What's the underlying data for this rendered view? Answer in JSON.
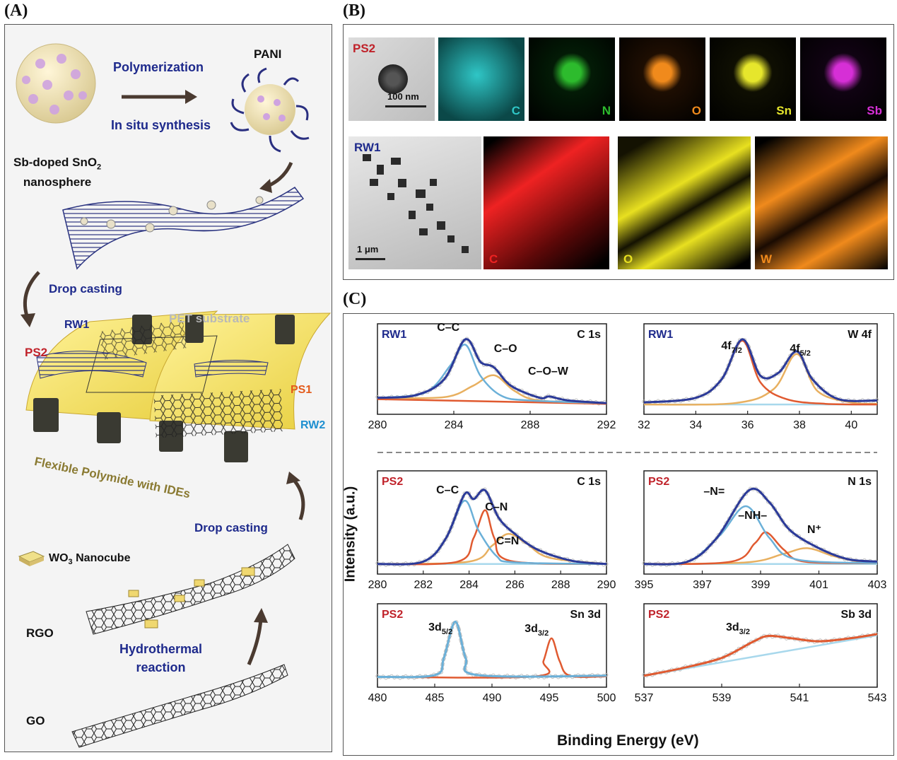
{
  "panel_labels": {
    "a": "(A)",
    "b": "(B)",
    "c": "(C)"
  },
  "panel_a": {
    "polymerization": "Polymerization",
    "in_situ": "In situ synthesis",
    "pani": "PANI",
    "sb_doped_line1": "Sb-doped SnO",
    "sb_doped_sub": "2",
    "sb_doped_line2": "nanosphere",
    "drop_casting_1": "Drop casting",
    "pet_substrate": "PET substrate",
    "rw1": "RW1",
    "ps2": "PS2",
    "ps1": "PS1",
    "rw2": "RW2",
    "flexible": "Flexible Polymide with IDEs",
    "drop_casting_2": "Drop casting",
    "wo3_prefix": "WO",
    "wo3_sub": "3",
    "wo3_suffix": " Nanocube",
    "rgo": "RGO",
    "hydrothermal_1": "Hydrothermal",
    "hydrothermal_2": "reaction",
    "go": "GO"
  },
  "panel_b": {
    "row1_sample": "PS2",
    "row1_scale": "100 nm",
    "row1_elements": [
      {
        "label": "C",
        "color": "#2fc6c6",
        "bg": "#0b4848"
      },
      {
        "label": "N",
        "color": "#2dbb2d",
        "bg": "#031b06"
      },
      {
        "label": "O",
        "color": "#f08a1c",
        "bg": "#1e0e02"
      },
      {
        "label": "Sn",
        "color": "#e6e62c",
        "bg": "#0f0f02"
      },
      {
        "label": "Sb",
        "color": "#d62fd6",
        "bg": "#100312"
      }
    ],
    "row2_sample": "RW1",
    "row2_scale": "1 μm",
    "row2_elements": [
      {
        "label": "C",
        "color": "#ee2222",
        "bg": "#5c0808"
      },
      {
        "label": "O",
        "color": "#e8e020",
        "bg": "#141202"
      },
      {
        "label": "W",
        "color": "#f08a1c",
        "bg": "#1a0b02"
      }
    ]
  },
  "panel_c": {
    "ylabel": "Intensity (a.u.)",
    "xlabel": "Binding Energy (eV)"
  },
  "chart_data": [
    {
      "type": "line",
      "sample": "RW1",
      "title": "C 1s",
      "xlim": [
        280,
        292
      ],
      "xticks": [
        280,
        284,
        288,
        292
      ],
      "peaks": [
        {
          "label": "C–C",
          "x": 284.6
        },
        {
          "label": "C–O",
          "x": 286.1
        },
        {
          "label": "C–O–W",
          "x": 289.0
        }
      ],
      "series": [
        {
          "color": "#2b3a99",
          "points": [
            [
              280,
              0.12
            ],
            [
              282,
              0.16
            ],
            [
              283.5,
              0.4
            ],
            [
              284.6,
              1.0
            ],
            [
              285.4,
              0.66
            ],
            [
              286.1,
              0.58
            ],
            [
              287,
              0.3
            ],
            [
              288.5,
              0.12
            ],
            [
              289,
              0.14
            ],
            [
              290,
              0.08
            ],
            [
              292,
              0.04
            ]
          ]
        },
        {
          "color": "#6bb0d8",
          "points": [
            [
              280,
              0.12
            ],
            [
              282.5,
              0.2
            ],
            [
              283.8,
              0.6
            ],
            [
              284.6,
              0.92
            ],
            [
              285.4,
              0.45
            ],
            [
              286.5,
              0.15
            ],
            [
              288,
              0.08
            ],
            [
              292,
              0.04
            ]
          ]
        },
        {
          "color": "#e8b060",
          "points": [
            [
              280,
              0.12
            ],
            [
              283.5,
              0.13
            ],
            [
              285,
              0.3
            ],
            [
              286.1,
              0.46
            ],
            [
              287.2,
              0.22
            ],
            [
              288.5,
              0.08
            ],
            [
              292,
              0.04
            ]
          ]
        },
        {
          "color": "#e05a30",
          "points": [
            [
              280,
              0.1
            ],
            [
              292,
              0.03
            ]
          ]
        }
      ]
    },
    {
      "type": "line",
      "sample": "RW1",
      "title": "W 4f",
      "xlim": [
        32,
        41
      ],
      "xticks": [
        32,
        34,
        36,
        38,
        40
      ],
      "peaks": [
        {
          "label": "4f",
          "sub": "7/2",
          "x": 35.8
        },
        {
          "label": "4f",
          "sub": "5/2",
          "x": 37.9
        }
      ],
      "series": [
        {
          "color": "#2b3a99",
          "points": [
            [
              32,
              0.05
            ],
            [
              34,
              0.12
            ],
            [
              35,
              0.4
            ],
            [
              35.8,
              1.0
            ],
            [
              36.5,
              0.45
            ],
            [
              37.2,
              0.5
            ],
            [
              37.9,
              0.82
            ],
            [
              38.5,
              0.4
            ],
            [
              39.5,
              0.1
            ],
            [
              41,
              0.08
            ]
          ]
        },
        {
          "color": "#e05a30",
          "points": [
            [
              32,
              0.05
            ],
            [
              34,
              0.12
            ],
            [
              35,
              0.4
            ],
            [
              35.8,
              0.98
            ],
            [
              36.5,
              0.35
            ],
            [
              37.5,
              0.1
            ],
            [
              39,
              0.03
            ],
            [
              41,
              0.02
            ]
          ]
        },
        {
          "color": "#e8b060",
          "points": [
            [
              32,
              0.02
            ],
            [
              35.5,
              0.04
            ],
            [
              37,
              0.25
            ],
            [
              37.9,
              0.78
            ],
            [
              38.7,
              0.22
            ],
            [
              40,
              0.05
            ],
            [
              41,
              0.03
            ]
          ]
        },
        {
          "color": "#a8d8ec",
          "points": [
            [
              32,
              0.02
            ],
            [
              41,
              0.02
            ]
          ]
        }
      ]
    },
    {
      "type": "line",
      "sample": "PS2",
      "title": "C 1s",
      "xlim": [
        280,
        290
      ],
      "xticks": [
        280,
        282,
        284,
        286,
        288,
        290
      ],
      "peaks": [
        {
          "label": "C–C",
          "x": 283.8
        },
        {
          "label": "C–N",
          "x": 284.7
        },
        {
          "label": "C=N",
          "x": 285.8
        }
      ],
      "series": [
        {
          "color": "#2b3a99",
          "points": [
            [
              280,
              0.02
            ],
            [
              282,
              0.05
            ],
            [
              283,
              0.35
            ],
            [
              283.8,
              0.9
            ],
            [
              284.2,
              0.84
            ],
            [
              284.7,
              0.95
            ],
            [
              285.3,
              0.6
            ],
            [
              286,
              0.4
            ],
            [
              287,
              0.2
            ],
            [
              288.5,
              0.06
            ],
            [
              290,
              0.02
            ]
          ]
        },
        {
          "color": "#6bb0d8",
          "points": [
            [
              280,
              0.02
            ],
            [
              282,
              0.05
            ],
            [
              283,
              0.35
            ],
            [
              283.8,
              0.82
            ],
            [
              284.4,
              0.45
            ],
            [
              285.2,
              0.12
            ],
            [
              286,
              0.04
            ],
            [
              290,
              0.02
            ]
          ]
        },
        {
          "color": "#e05a30",
          "points": [
            [
              280,
              0.02
            ],
            [
              283.5,
              0.05
            ],
            [
              284.2,
              0.35
            ],
            [
              284.7,
              0.7
            ],
            [
              285.1,
              0.35
            ],
            [
              285.8,
              0.06
            ],
            [
              290,
              0.02
            ]
          ]
        },
        {
          "color": "#e8b060",
          "points": [
            [
              280,
              0.02
            ],
            [
              284,
              0.05
            ],
            [
              285,
              0.25
            ],
            [
              285.7,
              0.4
            ],
            [
              286.5,
              0.28
            ],
            [
              287.5,
              0.1
            ],
            [
              290,
              0.02
            ]
          ]
        },
        {
          "color": "#a8d8ec",
          "points": [
            [
              280,
              0.02
            ],
            [
              290,
              0.02
            ]
          ]
        }
      ]
    },
    {
      "type": "line",
      "sample": "PS2",
      "title": "N 1s",
      "xlim": [
        395,
        403
      ],
      "xticks": [
        395,
        397,
        399,
        401,
        403
      ],
      "peaks": [
        {
          "label": "–N=",
          "x": 398.5
        },
        {
          "label": "–NH–",
          "x": 399.2
        },
        {
          "label": "N⁺",
          "x": 400.6
        }
      ],
      "series": [
        {
          "color": "#2b3a99",
          "points": [
            [
              395,
              0.02
            ],
            [
              396.5,
              0.05
            ],
            [
              397.5,
              0.35
            ],
            [
              398.6,
              0.95
            ],
            [
              399.3,
              0.8
            ],
            [
              400,
              0.45
            ],
            [
              401,
              0.22
            ],
            [
              402,
              0.08
            ],
            [
              403,
              0.05
            ]
          ]
        },
        {
          "color": "#6bb0d8",
          "points": [
            [
              395,
              0.02
            ],
            [
              396.5,
              0.05
            ],
            [
              397.6,
              0.38
            ],
            [
              398.5,
              0.75
            ],
            [
              399.3,
              0.35
            ],
            [
              400.2,
              0.08
            ],
            [
              403,
              0.03
            ]
          ]
        },
        {
          "color": "#e05a30",
          "points": [
            [
              395,
              0.02
            ],
            [
              398,
              0.05
            ],
            [
              398.8,
              0.28
            ],
            [
              399.2,
              0.42
            ],
            [
              399.8,
              0.2
            ],
            [
              400.5,
              0.05
            ],
            [
              403,
              0.03
            ]
          ]
        },
        {
          "color": "#e8b060",
          "points": [
            [
              395,
              0.02
            ],
            [
              398.5,
              0.04
            ],
            [
              399.8,
              0.15
            ],
            [
              400.6,
              0.22
            ],
            [
              401.5,
              0.12
            ],
            [
              402.5,
              0.04
            ],
            [
              403,
              0.03
            ]
          ]
        },
        {
          "color": "#a8d8ec",
          "points": [
            [
              395,
              0.02
            ],
            [
              403,
              0.02
            ]
          ]
        }
      ]
    },
    {
      "type": "line",
      "sample": "PS2",
      "title": "Sn 3d",
      "xlim": [
        480,
        500
      ],
      "xticks": [
        480,
        485,
        490,
        495,
        500
      ],
      "peaks": [
        {
          "label": "3d",
          "sub": "5/2",
          "x": 486.8
        },
        {
          "label": "3d",
          "sub": "3/2",
          "x": 495.2
        }
      ],
      "series": [
        {
          "color": "#6bb0d8",
          "points": [
            [
              480,
              0.03
            ],
            [
              485,
              0.06
            ],
            [
              485.8,
              0.35
            ],
            [
              486.8,
              0.96
            ],
            [
              487.7,
              0.35
            ],
            [
              488.8,
              0.06
            ],
            [
              500,
              0.05
            ]
          ]
        },
        {
          "color": "#e05a30",
          "points": [
            [
              480,
              0.03
            ],
            [
              493.8,
              0.04
            ],
            [
              494.5,
              0.3
            ],
            [
              495.2,
              0.68
            ],
            [
              495.9,
              0.3
            ],
            [
              496.8,
              0.05
            ],
            [
              500,
              0.04
            ]
          ]
        }
      ]
    },
    {
      "type": "line",
      "sample": "PS2",
      "title": "Sb 3d",
      "xlim": [
        537,
        543
      ],
      "xticks": [
        537,
        539,
        541,
        543
      ],
      "peaks": [
        {
          "label": "3d",
          "sub": "3/2",
          "x": 540.2
        }
      ],
      "series": [
        {
          "color": "#e05a30",
          "points": [
            [
              537,
              0.05
            ],
            [
              538,
              0.18
            ],
            [
              539,
              0.35
            ],
            [
              539.8,
              0.62
            ],
            [
              540.2,
              0.72
            ],
            [
              540.8,
              0.68
            ],
            [
              541.5,
              0.63
            ],
            [
              542.3,
              0.68
            ],
            [
              543,
              0.75
            ]
          ]
        },
        {
          "color": "#a8d8ec",
          "points": [
            [
              537,
              0.05
            ],
            [
              543,
              0.73
            ]
          ]
        }
      ]
    }
  ]
}
